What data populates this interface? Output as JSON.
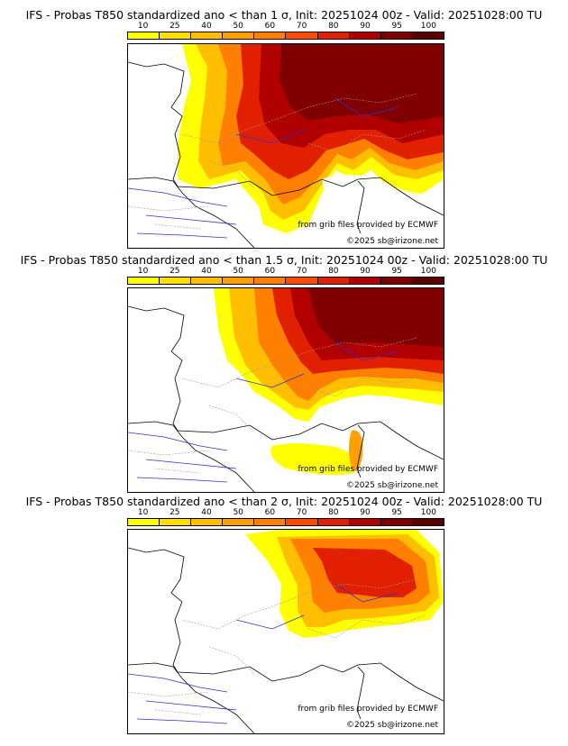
{
  "legend": {
    "ticks": [
      "10",
      "25",
      "40",
      "50",
      "60",
      "70",
      "80",
      "90",
      "95",
      "100"
    ],
    "colors": [
      "#ffff00",
      "#ffde00",
      "#ffbf00",
      "#ff9f00",
      "#ff7f00",
      "#ff4a00",
      "#e02000",
      "#b00000",
      "#800000",
      "#5a0000"
    ]
  },
  "credits": {
    "source": "from grib files provided by ECMWF",
    "copyright": "©2025 sb@irizone.net"
  },
  "panels": [
    {
      "title": "IFS - Probas T850  standardized ano < than 1 σ, Init: 20251024 00z - Valid: 20251028:00 TU",
      "sigma": "1"
    },
    {
      "title": "IFS - Probas T850  standardized ano < than 1.5 σ, Init: 20251024 00z - Valid: 20251028:00 TU",
      "sigma": "1.5"
    },
    {
      "title": "IFS - Probas T850  standardized ano < than 2 σ, Init: 20251024 00z - Valid: 20251028:00 TU",
      "sigma": "2"
    }
  ],
  "colors": {
    "coast": "#000000",
    "border": "#9a9a9a",
    "river": "#3030d0"
  }
}
